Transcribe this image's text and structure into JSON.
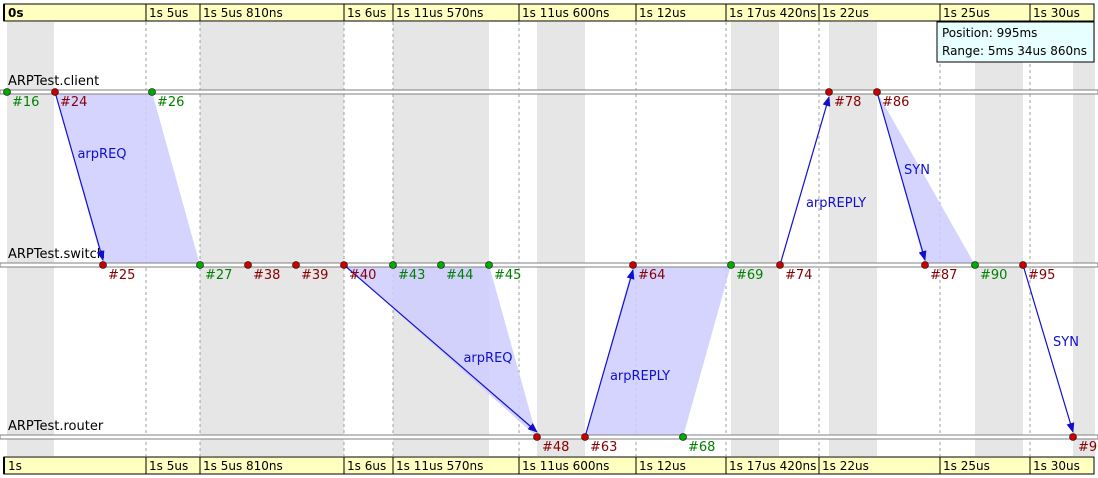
{
  "ruler": {
    "origin_label": "0s",
    "bottom_origin_label": "1s",
    "ticks": [
      "1s 5us",
      "1s 5us 810ns",
      "1s 6us",
      "1s 11us 570ns",
      "1s 11us 600ns",
      "1s 12us",
      "1s 17us 420ns",
      "1s 22us",
      "1s 25us",
      "1s 30us"
    ]
  },
  "info": {
    "position": "Position: 995ms",
    "range": "Range: 5ms 34us 860ns"
  },
  "lanes": [
    "ARPTest.client",
    "ARPTest.switch",
    "ARPTest.router"
  ],
  "events": [
    {
      "label": "#16",
      "lane": 0,
      "kind": "green"
    },
    {
      "label": "#24",
      "lane": 0,
      "kind": "red"
    },
    {
      "label": "#26",
      "lane": 0,
      "kind": "green"
    },
    {
      "label": "#78",
      "lane": 0,
      "kind": "red"
    },
    {
      "label": "#86",
      "lane": 0,
      "kind": "red"
    },
    {
      "label": "#25",
      "lane": 1,
      "kind": "red"
    },
    {
      "label": "#27",
      "lane": 1,
      "kind": "green"
    },
    {
      "label": "#38",
      "lane": 1,
      "kind": "red"
    },
    {
      "label": "#39",
      "lane": 1,
      "kind": "red"
    },
    {
      "label": "#40",
      "lane": 1,
      "kind": "red"
    },
    {
      "label": "#43",
      "lane": 1,
      "kind": "green"
    },
    {
      "label": "#44",
      "lane": 1,
      "kind": "green"
    },
    {
      "label": "#45",
      "lane": 1,
      "kind": "green"
    },
    {
      "label": "#64",
      "lane": 1,
      "kind": "red"
    },
    {
      "label": "#69",
      "lane": 1,
      "kind": "green"
    },
    {
      "label": "#74",
      "lane": 1,
      "kind": "red"
    },
    {
      "label": "#87",
      "lane": 1,
      "kind": "red"
    },
    {
      "label": "#90",
      "lane": 1,
      "kind": "green"
    },
    {
      "label": "#95",
      "lane": 1,
      "kind": "red"
    },
    {
      "label": "#48",
      "lane": 2,
      "kind": "red"
    },
    {
      "label": "#63",
      "lane": 2,
      "kind": "red"
    },
    {
      "label": "#68",
      "lane": 2,
      "kind": "green"
    },
    {
      "label": "#9",
      "lane": 2,
      "kind": "red"
    }
  ],
  "messages": [
    {
      "label": "arpREQ",
      "from": "#24",
      "to": "#25",
      "tx_end": "#26",
      "rx_end": "#27"
    },
    {
      "label": "arpREQ",
      "from": "#40",
      "to": "#48",
      "tx_end": "#45",
      "rx_end": "#48"
    },
    {
      "label": "arpREPLY",
      "from": "#63",
      "to": "#64",
      "tx_end": "#68",
      "rx_end": "#69"
    },
    {
      "label": "arpREPLY",
      "from": "#74",
      "to": "#78",
      "tx_end": "#74",
      "rx_end": "#78"
    },
    {
      "label": "SYN",
      "from": "#86",
      "to": "#87",
      "tx_end": "#86",
      "rx_end": "#90"
    },
    {
      "label": "SYN",
      "from": "#95",
      "to": "#9",
      "tx_end": "#95",
      "rx_end": "#9"
    }
  ],
  "colors": {
    "ruler_bg": "#ffffc0",
    "band_gray": "#e6e6e6",
    "transmission": "#ccccff",
    "arrow": "#1010cc",
    "event_red": "#cc0000",
    "event_green": "#00aa00",
    "label_red": "#880000",
    "label_green": "#008000",
    "info_bg": "#e8ffff"
  }
}
